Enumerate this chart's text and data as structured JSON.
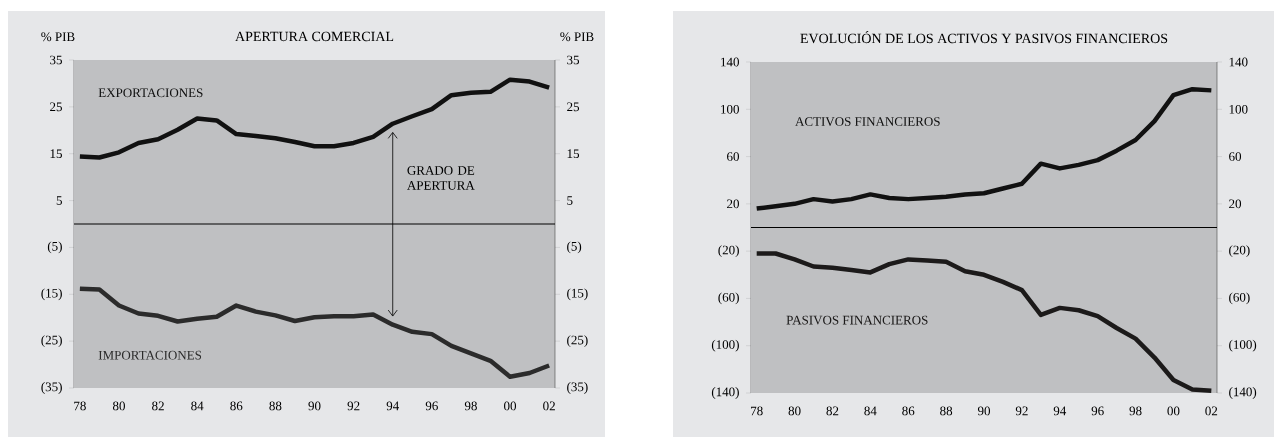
{
  "chart_data": [
    {
      "type": "line",
      "title": "APERTURA COMERCIAL",
      "ylabel": "% PIB",
      "y2label": "% PIB",
      "x": [
        1978,
        1979,
        1980,
        1981,
        1982,
        1983,
        1984,
        1985,
        1986,
        1987,
        1988,
        1989,
        1990,
        1991,
        1992,
        1993,
        1994,
        1995,
        1996,
        1997,
        1998,
        1999,
        2000,
        2001,
        2002
      ],
      "series": [
        {
          "name": "EXPORTACIONES",
          "color": "#111111",
          "values": [
            14.4,
            14.2,
            15.3,
            17.3,
            18.1,
            20.1,
            22.5,
            22.1,
            19.2,
            18.8,
            18.3,
            17.5,
            16.6,
            16.6,
            17.3,
            18.6,
            21.4,
            23.0,
            24.5,
            27.5,
            28.0,
            28.2,
            30.8,
            30.4,
            29.1
          ]
        },
        {
          "name": "IMPORTACIONES",
          "color": "#2b2b2b",
          "values": [
            -13.8,
            -14.0,
            -17.4,
            -19.1,
            -19.6,
            -20.8,
            -20.2,
            -19.8,
            -17.4,
            -18.7,
            -19.5,
            -20.7,
            -19.9,
            -19.7,
            -19.7,
            -19.3,
            -21.5,
            -23.0,
            -23.5,
            -26.0,
            -27.6,
            -29.2,
            -32.6,
            -31.8,
            -30.2
          ]
        }
      ],
      "xlim": [
        1977.7,
        2002.3
      ],
      "xticks": [
        {
          "value": 1978,
          "label": "78"
        },
        {
          "value": 1980,
          "label": "80"
        },
        {
          "value": 1982,
          "label": "82"
        },
        {
          "value": 1984,
          "label": "84"
        },
        {
          "value": 1986,
          "label": "86"
        },
        {
          "value": 1988,
          "label": "88"
        },
        {
          "value": 1990,
          "label": "90"
        },
        {
          "value": 1992,
          "label": "92"
        },
        {
          "value": 1994,
          "label": "94"
        },
        {
          "value": 1996,
          "label": "96"
        },
        {
          "value": 1998,
          "label": "98"
        },
        {
          "value": 2000,
          "label": "00"
        },
        {
          "value": 2002,
          "label": "02"
        }
      ],
      "ylim": [
        -35,
        35
      ],
      "yticks": [
        35,
        25,
        15,
        5,
        {
          "value": -5,
          "label": "(5)"
        },
        {
          "value": -15,
          "label": "(15)"
        },
        {
          "value": -25,
          "label": "(25)"
        },
        {
          "value": -35,
          "label": "(35)"
        }
      ],
      "y2lim": [
        -35,
        35
      ],
      "y2ticks": [
        35,
        25,
        15,
        5,
        {
          "value": -5,
          "label": "(5)"
        },
        {
          "value": -15,
          "label": "(15)"
        },
        {
          "value": -25,
          "label": "(25)"
        },
        {
          "value": -35,
          "label": "(35)"
        }
      ],
      "ref_lines": [
        {
          "axis": "y",
          "value": 0
        }
      ],
      "annotations": [
        {
          "text": "GRADO DE APERTURA",
          "x": 1994,
          "y": 0
        }
      ]
    },
    {
      "type": "line",
      "title": "EVOLUCIÓN DE LOS ACTIVOS Y PASIVOS FINANCIEROS",
      "x": [
        1978,
        1979,
        1980,
        1981,
        1982,
        1983,
        1984,
        1985,
        1986,
        1987,
        1988,
        1989,
        1990,
        1991,
        1992,
        1993,
        1994,
        1995,
        1996,
        1997,
        1998,
        1999,
        2000,
        2001,
        2002
      ],
      "series": [
        {
          "name": "ACTIVOS FINANCIEROS",
          "color": "#111111",
          "values": [
            16,
            18,
            20,
            24,
            22,
            24,
            28,
            25,
            24,
            25,
            26,
            28,
            29,
            33,
            37,
            54,
            50,
            53,
            57,
            65,
            74,
            90,
            112,
            117,
            116
          ]
        },
        {
          "name": "PASIVOS FINANCIEROS",
          "color": "#1c1a1a",
          "values": [
            -22,
            -22,
            -27,
            -33,
            -34,
            -36,
            -38,
            -31,
            -27,
            -28,
            -29,
            -37,
            -40,
            -46,
            -53,
            -74,
            -68,
            -70,
            -75,
            -85,
            -94,
            -110,
            -129,
            -137,
            -138
          ]
        }
      ],
      "xlim": [
        1977.7,
        2002.3
      ],
      "xticks": [
        {
          "value": 1978,
          "label": "78"
        },
        {
          "value": 1980,
          "label": "80"
        },
        {
          "value": 1982,
          "label": "82"
        },
        {
          "value": 1984,
          "label": "84"
        },
        {
          "value": 1986,
          "label": "86"
        },
        {
          "value": 1988,
          "label": "88"
        },
        {
          "value": 1990,
          "label": "90"
        },
        {
          "value": 1992,
          "label": "92"
        },
        {
          "value": 1994,
          "label": "94"
        },
        {
          "value": 1996,
          "label": "96"
        },
        {
          "value": 1998,
          "label": "98"
        },
        {
          "value": 2000,
          "label": "00"
        },
        {
          "value": 2002,
          "label": "02"
        }
      ],
      "ylim": [
        -140,
        140
      ],
      "yticks": [
        140,
        100,
        60,
        20,
        {
          "value": -20,
          "label": "(20)"
        },
        {
          "value": -60,
          "label": "(60)"
        },
        {
          "value": -100,
          "label": "(100)"
        },
        {
          "value": -140,
          "label": "(140)"
        }
      ],
      "y2lim": [
        -140,
        140
      ],
      "y2ticks": [
        140,
        100,
        60,
        20,
        {
          "value": -20,
          "label": "(20)"
        },
        {
          "value": -60,
          "label": "(60)"
        },
        {
          "value": -100,
          "label": "(100)"
        },
        {
          "value": -140,
          "label": "(140)"
        }
      ],
      "ref_lines": [
        {
          "axis": "y",
          "value": 0
        }
      ]
    }
  ]
}
